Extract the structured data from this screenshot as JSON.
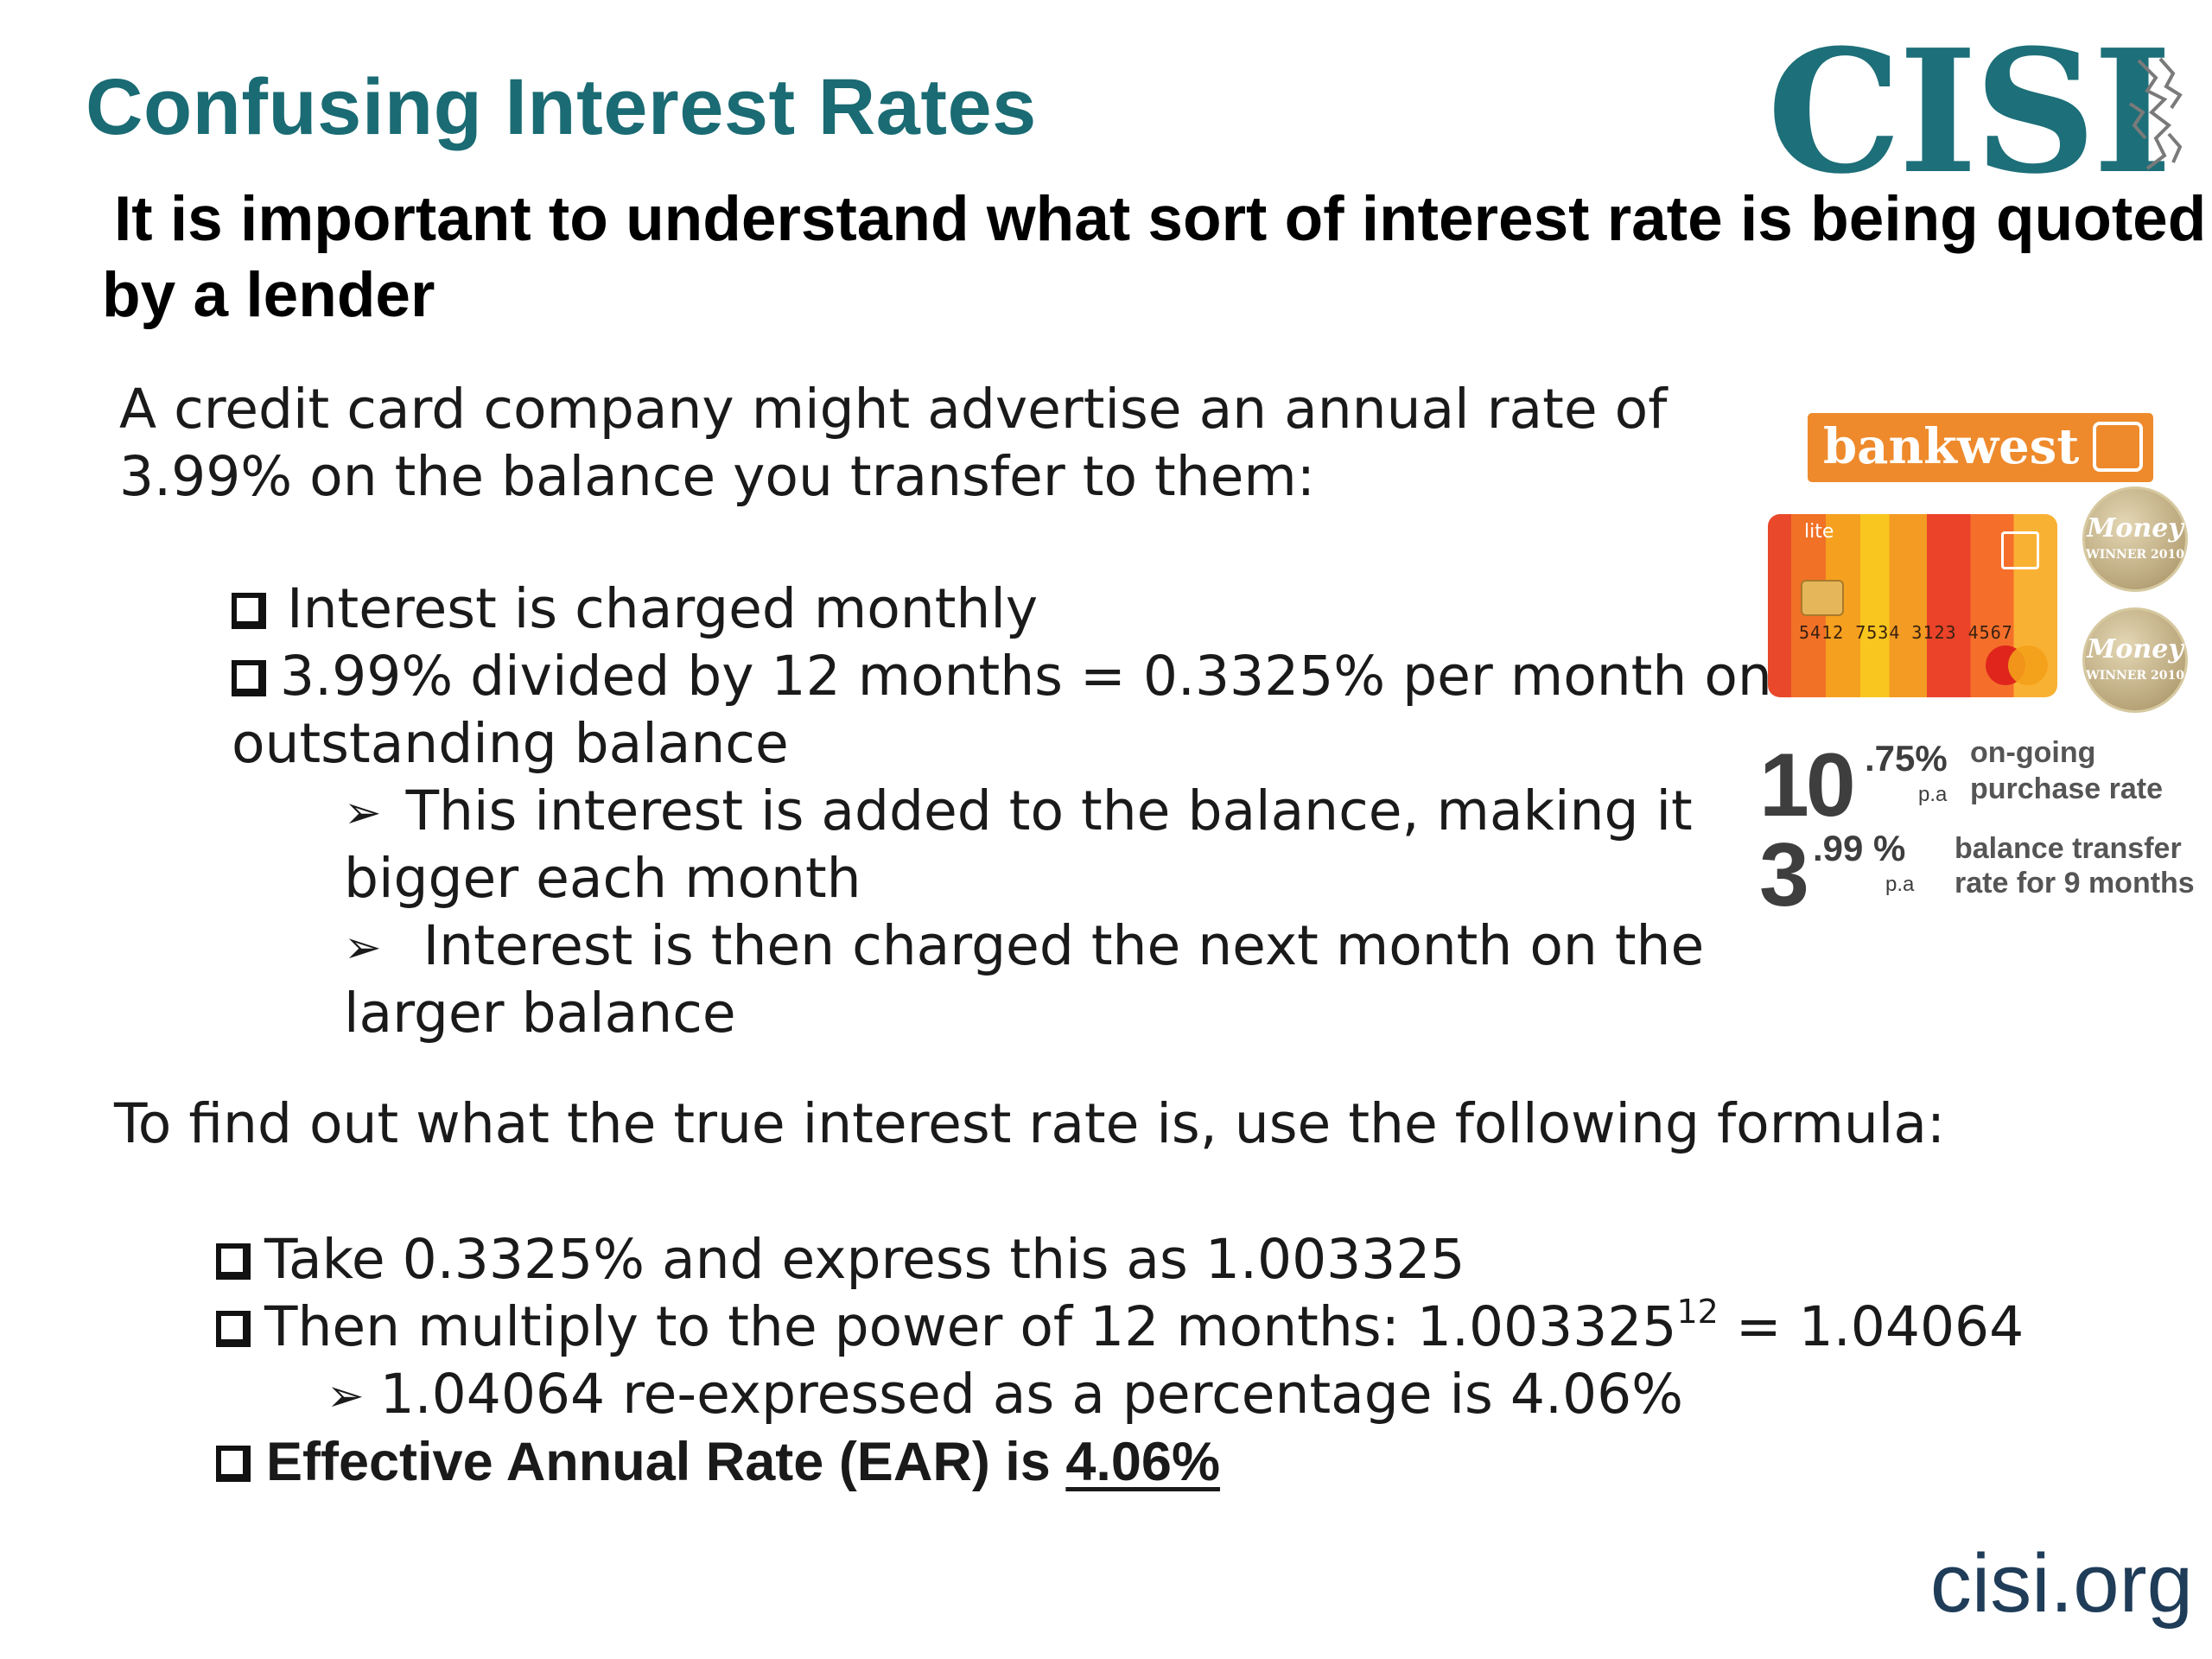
{
  "title": "Confusing Interest Rates",
  "logo": {
    "text": "CISI",
    "icon": "griffin-icon",
    "color": "#1d6f79"
  },
  "subtitle": {
    "line1": "It is important to understand what sort of interest rate is being quoted",
    "line2": "by a lender"
  },
  "intro": {
    "line1": "A credit card company might advertise an annual rate of",
    "line2": "3.99% on the balance you transfer to them:"
  },
  "bullets": [
    {
      "text": "Interest is charged monthly"
    },
    {
      "text": "3.99% divided by 12 months  =  0.3325% per month on",
      "cont": "outstanding  balance"
    }
  ],
  "sub_bullets": [
    {
      "text": "This interest is added to the balance, making it",
      "cont": "bigger each month"
    },
    {
      "text": " Interest is then charged the next month on the",
      "cont": "larger balance"
    }
  ],
  "formula_intro": "To find out what the true interest rate is, use the following formula:",
  "formula": {
    "step1": "Take 0.3325% and express this as 1.003325",
    "step2_prefix": "Then multiply to the power of 12 months: 1.003325",
    "step2_exp": "12",
    "step2_suffix": " = 1.04064",
    "step3": "1.04064 re-expressed as a percentage is 4.06%",
    "ear_prefix": "Effective Annual Rate (EAR) is ",
    "ear_value": "4.06%"
  },
  "footer": "cisi.org",
  "ad": {
    "brand": "bankwest",
    "card_label": "lite",
    "card_number": "5412 7534 3123 4567",
    "card_brand": "MasterCard",
    "award_title": "Money",
    "award_sub": "WINNER 2010",
    "rate1": {
      "whole": "10",
      "decimal": ".75%",
      "pa": "p.a",
      "label1": "on-going",
      "label2": "purchase rate"
    },
    "rate2": {
      "whole": "3",
      "decimal": ".99 %",
      "pa": "p.a",
      "label1": "balance transfer",
      "label2": "rate for 9 months"
    },
    "brand_color": "#ee8a2c"
  },
  "colors": {
    "title": "#1a6b73",
    "footer": "#1f3c58"
  }
}
